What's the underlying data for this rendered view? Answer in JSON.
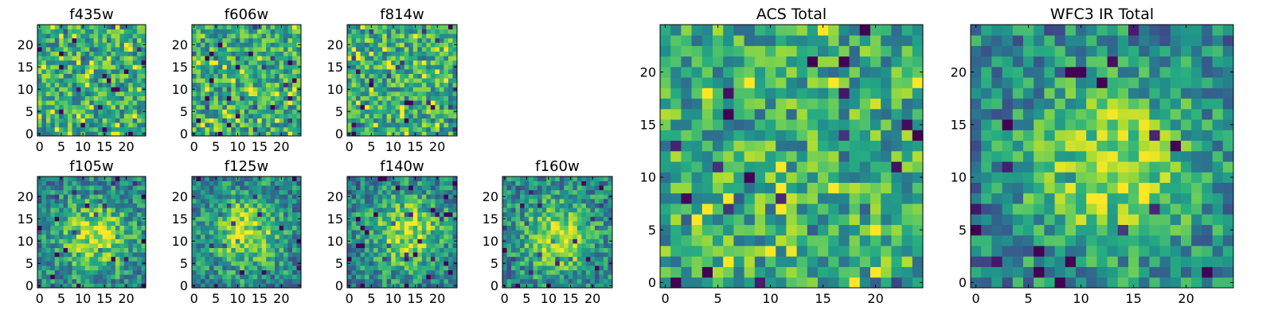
{
  "figure": {
    "description_colormap": "viridis",
    "colors": {
      "low": "#440154",
      "mid_low": "#31688e",
      "mid": "#21918c",
      "mid_high": "#5ec962",
      "high": "#fde725"
    }
  },
  "chart_data": [
    {
      "id": "f435w",
      "type": "heatmap",
      "title": "f435w",
      "grid_size": 25,
      "xlim": [
        0,
        24
      ],
      "ylim": [
        0,
        24
      ],
      "xticks": [
        "0",
        "5",
        "10",
        "15",
        "20"
      ],
      "yticks": [
        "0",
        "5",
        "10",
        "15",
        "20"
      ],
      "pattern": "noise",
      "seed": 11,
      "value_range": [
        0,
        1
      ]
    },
    {
      "id": "f606w",
      "type": "heatmap",
      "title": "f606w",
      "grid_size": 25,
      "xlim": [
        0,
        24
      ],
      "ylim": [
        0,
        24
      ],
      "xticks": [
        "0",
        "5",
        "10",
        "15",
        "20"
      ],
      "yticks": [
        "0",
        "5",
        "10",
        "15",
        "20"
      ],
      "pattern": "noise",
      "seed": 23,
      "value_range": [
        0,
        1
      ]
    },
    {
      "id": "f814w",
      "type": "heatmap",
      "title": "f814w",
      "grid_size": 25,
      "xlim": [
        0,
        24
      ],
      "ylim": [
        0,
        24
      ],
      "xticks": [
        "0",
        "5",
        "10",
        "15",
        "20"
      ],
      "yticks": [
        "0",
        "5",
        "10",
        "15",
        "20"
      ],
      "pattern": "noise",
      "seed": 37,
      "value_range": [
        0,
        1
      ]
    },
    {
      "id": "f105w",
      "type": "heatmap",
      "title": "f105w",
      "grid_size": 25,
      "xlim": [
        0,
        24
      ],
      "ylim": [
        0,
        24
      ],
      "xticks": [
        "0",
        "5",
        "10",
        "15",
        "20"
      ],
      "yticks": [
        "0",
        "5",
        "10",
        "15",
        "20"
      ],
      "pattern": "source",
      "source_center": [
        13,
        11
      ],
      "seed": 41,
      "value_range": [
        0,
        1
      ]
    },
    {
      "id": "f125w",
      "type": "heatmap",
      "title": "f125w",
      "grid_size": 25,
      "xlim": [
        0,
        24
      ],
      "ylim": [
        0,
        24
      ],
      "xticks": [
        "0",
        "5",
        "10",
        "15",
        "20"
      ],
      "yticks": [
        "0",
        "5",
        "10",
        "15",
        "20"
      ],
      "pattern": "source",
      "source_center": [
        12,
        12
      ],
      "seed": 53,
      "value_range": [
        0,
        1
      ]
    },
    {
      "id": "f140w",
      "type": "heatmap",
      "title": "f140w",
      "grid_size": 25,
      "xlim": [
        0,
        24
      ],
      "ylim": [
        0,
        24
      ],
      "xticks": [
        "0",
        "5",
        "10",
        "15",
        "20"
      ],
      "yticks": [
        "0",
        "5",
        "10",
        "15",
        "20"
      ],
      "pattern": "source",
      "source_center": [
        13,
        12
      ],
      "seed": 67,
      "value_range": [
        0,
        1
      ]
    },
    {
      "id": "f160w",
      "type": "heatmap",
      "title": "f160w",
      "grid_size": 25,
      "xlim": [
        0,
        24
      ],
      "ylim": [
        0,
        24
      ],
      "xticks": [
        "0",
        "5",
        "10",
        "15",
        "20"
      ],
      "yticks": [
        "0",
        "5",
        "10",
        "15",
        "20"
      ],
      "pattern": "source",
      "source_center": [
        12,
        11
      ],
      "seed": 79,
      "value_range": [
        0,
        1
      ]
    },
    {
      "id": "acs-total",
      "type": "heatmap",
      "title": "ACS Total",
      "grid_size": 25,
      "xlim": [
        0,
        24
      ],
      "ylim": [
        0,
        24
      ],
      "xticks": [
        "0",
        "5",
        "10",
        "15",
        "20"
      ],
      "yticks": [
        "0",
        "5",
        "10",
        "15",
        "20"
      ],
      "pattern": "noise",
      "seed": 97,
      "value_range": [
        0,
        1
      ]
    },
    {
      "id": "wfc3-ir-total",
      "type": "heatmap",
      "title": "WFC3 IR Total",
      "grid_size": 25,
      "xlim": [
        0,
        24
      ],
      "ylim": [
        0,
        24
      ],
      "xticks": [
        "0",
        "5",
        "10",
        "15",
        "20"
      ],
      "yticks": [
        "0",
        "5",
        "10",
        "15",
        "20"
      ],
      "pattern": "source",
      "source_center": [
        13,
        11
      ],
      "seed": 113,
      "value_range": [
        0,
        1
      ]
    }
  ]
}
